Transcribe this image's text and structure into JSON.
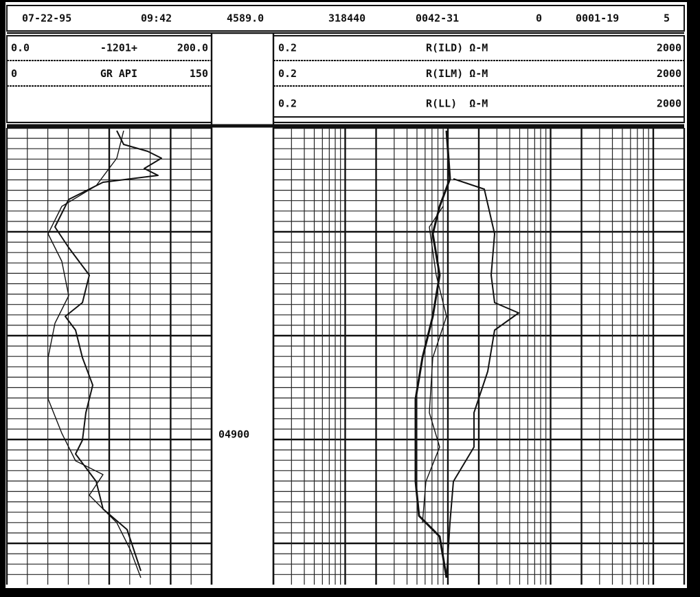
{
  "header": [
    "07-22-95",
    "09:42",
    "4589.0",
    "318440",
    "0042-31",
    "0",
    "0001-19",
    "5"
  ],
  "left_scales": [
    [
      "0.0",
      "-1201+",
      "200.0"
    ],
    [
      "0",
      "GR API",
      "150"
    ]
  ],
  "right_scales": [
    [
      "0.2",
      "R(ILD) Ω-M",
      "2000"
    ],
    [
      "0.2",
      "R(ILM) Ω-M",
      "2000"
    ],
    [
      "0.2",
      "R(LL)  Ω-M",
      "2000"
    ]
  ],
  "depth_label": "04900"
}
